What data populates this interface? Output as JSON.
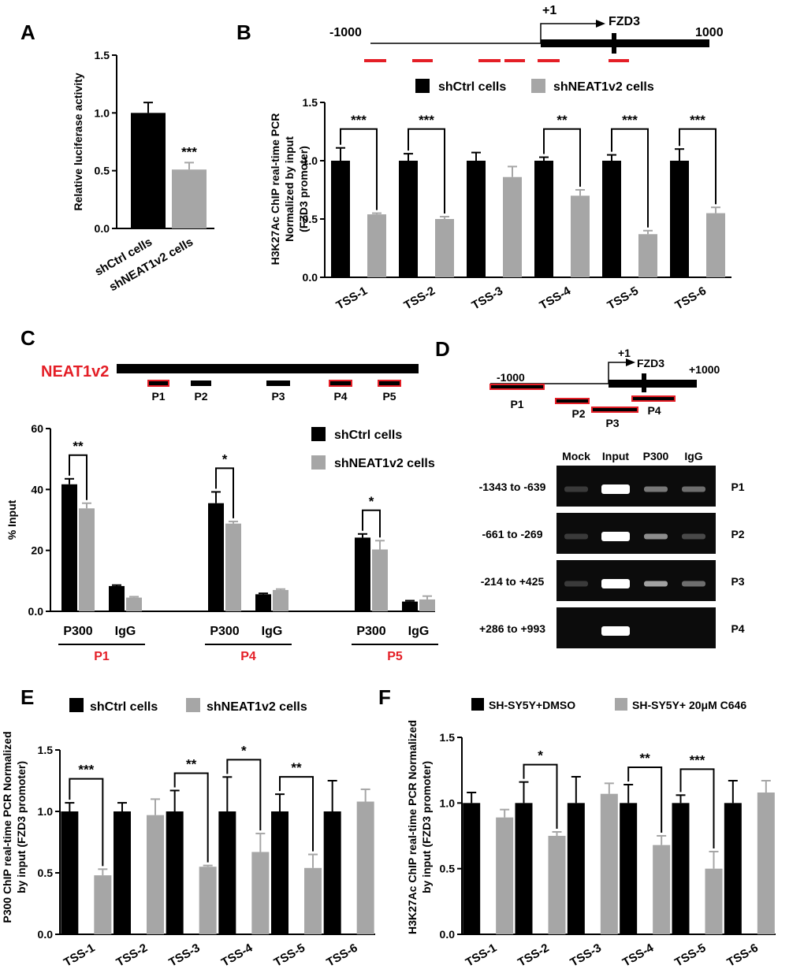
{
  "colors": {
    "ctrl": "#000000",
    "treated": "#a6a6a6",
    "highlight": "#e41e26",
    "gel": "#0c0c0c"
  },
  "panels": {
    "A": {
      "letter": "A",
      "chart_data": {
        "type": "bar",
        "categories": [
          "shCtrl cells",
          "shNEAT1v2 cells"
        ],
        "values": [
          1.0,
          0.51
        ],
        "errors": [
          0.09,
          0.06
        ],
        "ylabel": "Relative luciferase activity",
        "ylim": [
          0,
          1.5
        ],
        "yticks": [
          "0.0",
          "0.5",
          "1.0",
          "1.5"
        ],
        "annotations": [
          {
            "category": "shNEAT1v2 cells",
            "text": "***"
          }
        ]
      }
    },
    "B": {
      "letter": "B",
      "schematic": {
        "left": "-1000",
        "right": "1000",
        "tss": "+1",
        "gene": "FZD3"
      },
      "chart_data": {
        "type": "bar",
        "categories": [
          "TSS-1",
          "TSS-2",
          "TSS-3",
          "TSS-4",
          "TSS-5",
          "TSS-6"
        ],
        "series": [
          {
            "name": "shCtrl cells",
            "values": [
              1.0,
              1.0,
              1.0,
              1.0,
              1.0,
              1.0
            ],
            "errors": [
              0.11,
              0.06,
              0.07,
              0.03,
              0.05,
              0.1
            ]
          },
          {
            "name": "shNEAT1v2 cells",
            "values": [
              0.54,
              0.5,
              0.86,
              0.7,
              0.37,
              0.55
            ],
            "errors": [
              0.01,
              0.02,
              0.09,
              0.05,
              0.03,
              0.05
            ]
          }
        ],
        "ylabel_lines": [
          "H3K27Ac ChIP real-time PCR",
          "Normalized by input",
          "(FZD3 promoter)"
        ],
        "ylim": [
          0,
          1.5
        ],
        "yticks": [
          "0.0",
          "0.5",
          "1.0",
          "1.5"
        ],
        "significance": [
          "***",
          "***",
          "",
          "**",
          "***",
          "***"
        ]
      }
    },
    "C": {
      "letter": "C",
      "transcript": {
        "name": "NEAT1v2",
        "probes": [
          "P1",
          "P2",
          "P3",
          "P4",
          "P5"
        ]
      },
      "chart_data": {
        "type": "bar",
        "groups": [
          "P1",
          "P4",
          "P5"
        ],
        "subcategories": [
          "P300",
          "IgG"
        ],
        "series": [
          {
            "name": "shCtrl cells",
            "values": [
              41.7,
              8.3,
              35.5,
              5.6,
              24.2,
              3.2
            ],
            "errors": [
              1.8,
              0.3,
              3.7,
              0.3,
              1.2,
              0.3
            ]
          },
          {
            "name": "shNEAT1v2 cells",
            "values": [
              33.8,
              4.5,
              28.8,
              7.0,
              20.3,
              3.9
            ],
            "errors": [
              1.7,
              0.3,
              0.7,
              0.3,
              2.9,
              1.1
            ]
          }
        ],
        "ylabel": "% Input",
        "ylim": [
          0,
          60
        ],
        "yticks": [
          "0.0",
          "20",
          "40",
          "60"
        ],
        "significance": [
          "**",
          "*",
          "*"
        ]
      }
    },
    "D": {
      "letter": "D",
      "schematic": {
        "left": "-1000",
        "right": "+1000",
        "tss": "+1",
        "gene": "FZD3",
        "probes": [
          "P1",
          "P2",
          "P3",
          "P4"
        ]
      },
      "gel": {
        "columns": [
          "Mock",
          "Input",
          "P300",
          "IgG"
        ],
        "rows": [
          {
            "range": "-1343 to -639",
            "probe": "P1",
            "bands": [
              0.05,
              1.0,
              0.35,
              0.3
            ]
          },
          {
            "range": "-661 to -269",
            "probe": "P2",
            "bands": [
              0.05,
              1.0,
              0.45,
              0.12
            ]
          },
          {
            "range": "-214 to +425",
            "probe": "P3",
            "bands": [
              0.05,
              1.0,
              0.55,
              0.3
            ]
          },
          {
            "range": "+286 to +993",
            "probe": "P4",
            "bands": [
              0.0,
              1.0,
              0.0,
              0.0
            ]
          }
        ]
      }
    },
    "E": {
      "letter": "E",
      "chart_data": {
        "type": "bar",
        "categories": [
          "TSS-1",
          "TSS-2",
          "TSS-3",
          "TSS-4",
          "TSS-5",
          "TSS-6"
        ],
        "series": [
          {
            "name": "shCtrl cells",
            "values": [
              1.0,
              1.0,
              1.0,
              1.0,
              1.0,
              1.0
            ],
            "errors": [
              0.07,
              0.07,
              0.17,
              0.28,
              0.14,
              0.25
            ]
          },
          {
            "name": "shNEAT1v2 cells",
            "values": [
              0.48,
              0.97,
              0.55,
              0.67,
              0.54,
              1.08
            ],
            "errors": [
              0.05,
              0.13,
              0.01,
              0.15,
              0.11,
              0.1
            ]
          }
        ],
        "ylabel_lines": [
          "P300 ChIP real-time PCR Normalized",
          "by input (FZD3 promoter)"
        ],
        "ylim": [
          0,
          1.5
        ],
        "yticks": [
          "0.0",
          "0.5",
          "1.0",
          "1.5"
        ],
        "significance": [
          "***",
          "",
          "**",
          "*",
          "**",
          ""
        ]
      }
    },
    "F": {
      "letter": "F",
      "chart_data": {
        "type": "bar",
        "categories": [
          "TSS-1",
          "TSS-2",
          "TSS-3",
          "TSS-4",
          "TSS-5",
          "TSS-6"
        ],
        "series": [
          {
            "name": "SH-SY5Y+DMSO",
            "values": [
              1.0,
              1.0,
              1.0,
              1.0,
              1.0,
              1.0
            ],
            "errors": [
              0.08,
              0.16,
              0.2,
              0.14,
              0.06,
              0.17
            ]
          },
          {
            "name": "SH-SY5Y+ 20μM C646",
            "values": [
              0.89,
              0.75,
              1.07,
              0.68,
              0.5,
              1.08
            ],
            "errors": [
              0.06,
              0.03,
              0.08,
              0.07,
              0.13,
              0.09
            ]
          }
        ],
        "ylabel_lines": [
          "H3K27Ac ChIP real-time PCR Normalized",
          "by input (FZD3 promoter)"
        ],
        "ylim": [
          0,
          1.5
        ],
        "yticks": [
          "0.0",
          "0.5",
          "1.0",
          "1.5"
        ],
        "significance": [
          "",
          "*",
          "",
          "**",
          "***",
          ""
        ]
      }
    }
  }
}
